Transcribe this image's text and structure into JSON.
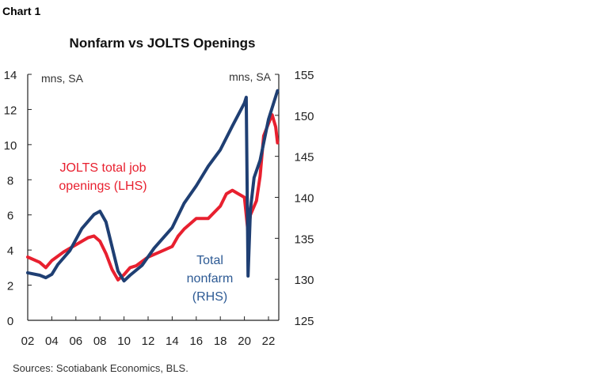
{
  "header": {
    "label": "Chart 1",
    "title": "Nonfarm vs JOLTS Openings"
  },
  "footer": {
    "source": "Sources: Scotiabank Economics, BLS."
  },
  "chart_data": {
    "type": "line",
    "title": "Nonfarm vs JOLTS Openings",
    "left_unit_label": "mns, SA",
    "right_unit_label": "mns, SA",
    "xlim": [
      2002,
      2023
    ],
    "ylim_left": [
      0,
      14
    ],
    "ylim_right": [
      125,
      155
    ],
    "x_ticks": [
      "02",
      "04",
      "06",
      "08",
      "10",
      "12",
      "14",
      "16",
      "18",
      "20",
      "22"
    ],
    "y_ticks_left": [
      "0",
      "2",
      "4",
      "6",
      "8",
      "10",
      "12",
      "14"
    ],
    "y_ticks_right": [
      "125",
      "130",
      "135",
      "140",
      "145",
      "150",
      "155"
    ],
    "grid": false,
    "colors": {
      "jolts": "#e8202f",
      "nonfarm": "#1f3f73"
    },
    "series": [
      {
        "name": "JOLTS total job openings (LHS)",
        "axis": "left",
        "x": [
          2002,
          2003,
          2003.5,
          2004,
          2005,
          2006,
          2007,
          2007.5,
          2008,
          2008.5,
          2009,
          2009.5,
          2010,
          2010.5,
          2011,
          2012,
          2013,
          2014,
          2014.5,
          2015,
          2016,
          2017,
          2018,
          2018.5,
          2019,
          2019.5,
          2020,
          2020.3,
          2020.5,
          2021,
          2021.3,
          2021.6,
          2022,
          2022.3,
          2022.6,
          2022.75
        ],
        "y": [
          3.6,
          3.3,
          3.0,
          3.4,
          3.9,
          4.3,
          4.7,
          4.8,
          4.5,
          3.8,
          2.9,
          2.3,
          2.6,
          3.0,
          3.1,
          3.6,
          3.9,
          4.2,
          4.8,
          5.2,
          5.8,
          5.8,
          6.5,
          7.2,
          7.4,
          7.2,
          7.0,
          5.0,
          6.0,
          6.8,
          8.2,
          10.5,
          11.2,
          11.7,
          11.0,
          10.1
        ]
      },
      {
        "name": "Total nonfarm (RHS)",
        "axis": "right",
        "x": [
          2002,
          2003,
          2003.5,
          2004,
          2004.5,
          2005.5,
          2006.5,
          2007.5,
          2008,
          2008.5,
          2009,
          2009.5,
          2010,
          2010.5,
          2011.5,
          2012.5,
          2014,
          2015,
          2016,
          2017,
          2018,
          2019,
          2020,
          2020.15,
          2020.3,
          2020.5,
          2020.8,
          2021.3,
          2022,
          2022.75
        ],
        "y": [
          130.8,
          130.5,
          130.2,
          130.6,
          131.8,
          133.5,
          136.2,
          137.9,
          138.3,
          137.0,
          134.0,
          131.0,
          129.8,
          130.5,
          131.7,
          133.8,
          136.3,
          139.3,
          141.4,
          143.8,
          145.8,
          148.7,
          151.5,
          152.2,
          130.4,
          138.5,
          142.4,
          144.5,
          149.5,
          153.0
        ]
      }
    ],
    "annotations": {
      "jolts": [
        "JOLTS total job",
        "openings (LHS)"
      ],
      "nonfarm": [
        "Total",
        "nonfarm",
        "(RHS)"
      ]
    }
  }
}
